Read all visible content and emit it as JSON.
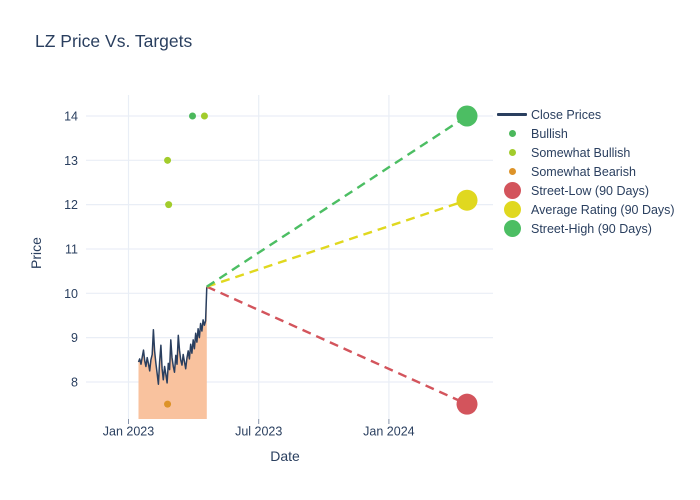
{
  "chart_data": {
    "type": "line",
    "title": "LZ Price Vs. Targets",
    "xlabel": "Date",
    "ylabel": "Price",
    "grid": true,
    "legend_position": "right",
    "y_ticks": [
      8,
      9,
      10,
      11,
      12,
      13,
      14
    ],
    "y_range": [
      7.17,
      14.47
    ],
    "x_ticks": [
      {
        "label": "Jan 2023",
        "t": 0
      },
      {
        "label": "Jul 2023",
        "t": 6
      },
      {
        "label": "Jan 2024",
        "t": 12
      }
    ],
    "x_range_months_from_jan2023": [
      -1.95,
      16.85
    ],
    "style": {
      "grid_color": "#e9eef6",
      "tick_color": "#8693aa",
      "text_color": "#2a3f5f",
      "background": "#ffffff"
    },
    "series": {
      "close_prices": {
        "name": "Close Prices",
        "color": "#2a3f5f",
        "fill_color": "#f9c29e",
        "t_start": 0.46,
        "t_end": 3.61,
        "prices": [
          8.45,
          8.52,
          8.4,
          8.56,
          8.72,
          8.48,
          8.35,
          8.55,
          8.42,
          8.25,
          8.5,
          8.62,
          9.18,
          8.7,
          8.42,
          8.2,
          7.95,
          8.45,
          8.83,
          8.3,
          8.05,
          8.35,
          8.18,
          7.98,
          8.42,
          8.28,
          8.95,
          8.55,
          8.35,
          8.22,
          8.6,
          8.4,
          9.05,
          8.72,
          8.5,
          8.38,
          8.62,
          8.45,
          8.3,
          8.55,
          8.7,
          8.52,
          8.85,
          8.65,
          8.95,
          8.75,
          9.1,
          8.9,
          9.2,
          9.0,
          9.32,
          9.15,
          9.4,
          9.28,
          9.38,
          10.15
        ],
        "last_close": 10.15
      }
    },
    "ratings": [
      {
        "name": "Bullish",
        "color": "#4bb85c",
        "points": [
          [
            2.95,
            14
          ]
        ]
      },
      {
        "name": "Somewhat Bullish",
        "color": "#a2cc2c",
        "points": [
          [
            1.8,
            13
          ],
          [
            1.85,
            12
          ],
          [
            3.5,
            14
          ]
        ]
      },
      {
        "name": "Somewhat Bearish",
        "color": "#dd9329",
        "points": [
          [
            1.8,
            7.5
          ]
        ]
      }
    ],
    "targets": [
      {
        "name": "Street-Low (90 Days)",
        "color": "#d3545c",
        "t": 15.6,
        "value": 7.5
      },
      {
        "name": "Average Rating (90 Days)",
        "color": "#e0d81f",
        "t": 15.6,
        "value": 12.1
      },
      {
        "name": "Street-High (90 Days)",
        "color": "#4cbe63",
        "t": 15.6,
        "value": 14
      }
    ],
    "legend": [
      {
        "label": "Close Prices",
        "marker": "line",
        "color": "#2a3f5f"
      },
      {
        "label": "Bullish",
        "marker": "dot-sm",
        "color": "#4bb85c"
      },
      {
        "label": "Somewhat Bullish",
        "marker": "dot-sm",
        "color": "#a2cc2c"
      },
      {
        "label": "Somewhat Bearish",
        "marker": "dot-sm",
        "color": "#dd9329"
      },
      {
        "label": "Street-Low (90 Days)",
        "marker": "dot-lg",
        "color": "#d3545c"
      },
      {
        "label": "Average Rating (90 Days)",
        "marker": "dot-lg",
        "color": "#e0d81f"
      },
      {
        "label": "Street-High (90 Days)",
        "marker": "dot-lg",
        "color": "#4cbe63"
      }
    ]
  }
}
